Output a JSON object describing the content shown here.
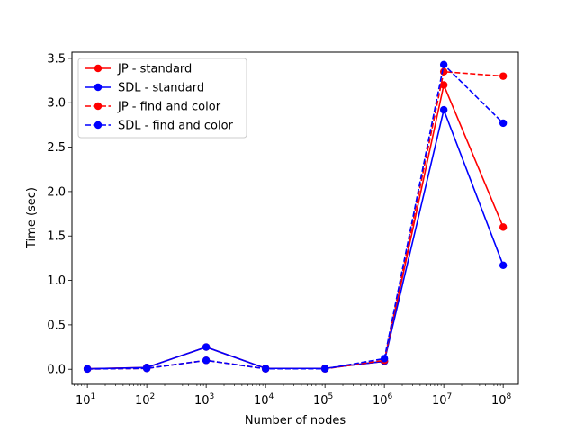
{
  "chart_data": {
    "type": "line",
    "title": "",
    "xlabel": "Number of nodes",
    "ylabel": "Time (sec)",
    "x_scale": "log",
    "xlim": [
      5.5,
      180000000
    ],
    "ylim": [
      -0.17,
      3.57
    ],
    "grid": false,
    "legend_position": "top-left",
    "x": [
      10,
      100,
      1000,
      10000,
      100000,
      1000000,
      10000000,
      100000000
    ],
    "x_tick_labels": [
      {
        "base": "10",
        "exp": "1"
      },
      {
        "base": "10",
        "exp": "2"
      },
      {
        "base": "10",
        "exp": "3"
      },
      {
        "base": "10",
        "exp": "4"
      },
      {
        "base": "10",
        "exp": "5"
      },
      {
        "base": "10",
        "exp": "6"
      },
      {
        "base": "10",
        "exp": "7"
      },
      {
        "base": "10",
        "exp": "8"
      }
    ],
    "y_ticks": [
      0.0,
      0.5,
      1.0,
      1.5,
      2.0,
      2.5,
      3.0,
      3.5
    ],
    "y_tick_labels": [
      "0.0",
      "0.5",
      "1.0",
      "1.5",
      "2.0",
      "2.5",
      "3.0",
      "3.5"
    ],
    "series": [
      {
        "name": "JP - standard",
        "color": "#ff0000",
        "dash": "solid",
        "values": [
          0.005,
          0.02,
          0.25,
          0.01,
          0.01,
          0.09,
          3.2,
          1.6
        ]
      },
      {
        "name": "SDL - standard",
        "color": "#0000ff",
        "dash": "solid",
        "values": [
          0.005,
          0.02,
          0.25,
          0.01,
          0.01,
          0.09,
          2.92,
          1.17
        ]
      },
      {
        "name": "JP - find and color",
        "color": "#ff0000",
        "dash": "dashed",
        "values": [
          0.003,
          0.01,
          0.1,
          0.005,
          0.005,
          0.1,
          3.35,
          3.3
        ]
      },
      {
        "name": "SDL - find and color",
        "color": "#0000ff",
        "dash": "dashed",
        "values": [
          0.003,
          0.01,
          0.1,
          0.005,
          0.005,
          0.12,
          3.43,
          2.77
        ]
      }
    ]
  }
}
